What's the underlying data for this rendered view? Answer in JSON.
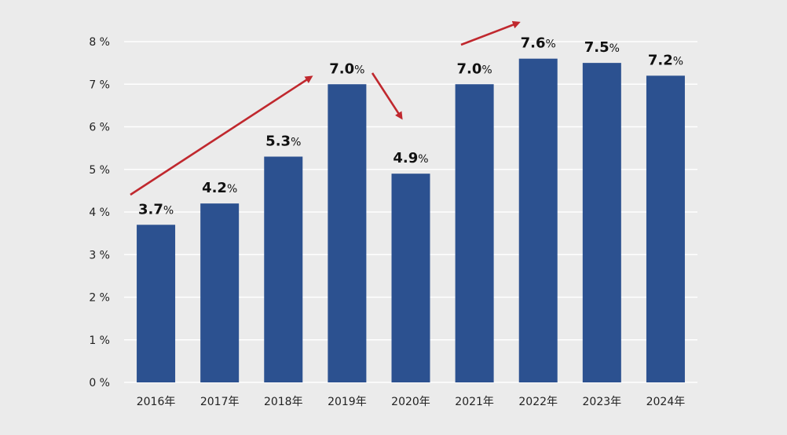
{
  "chart_data": {
    "type": "bar",
    "categories": [
      "2016年",
      "2017年",
      "2018年",
      "2019年",
      "2020年",
      "2021年",
      "2022年",
      "2023年",
      "2024年"
    ],
    "values": [
      3.7,
      4.2,
      5.3,
      7.0,
      4.9,
      7.0,
      7.6,
      7.5,
      7.2
    ],
    "value_labels": [
      "3.7",
      "4.2",
      "5.3",
      "7.0",
      "4.9",
      "7.0",
      "7.6",
      "7.5",
      "7.2"
    ],
    "value_suffix": "%",
    "y_tick_values": [
      0,
      1,
      2,
      3,
      4,
      5,
      6,
      7,
      8
    ],
    "y_tick_labels": [
      "0 %",
      "1 %",
      "2 %",
      "3 %",
      "4 %",
      "5 %",
      "6 %",
      "7 %",
      "8 %"
    ],
    "ylim": [
      0,
      8
    ],
    "grid": true,
    "legend": "none",
    "title": "",
    "xlabel": "",
    "ylabel": "",
    "annotations": [
      {
        "type": "trend-arrow",
        "from_category": "2016年",
        "to_category": "2019年",
        "direction": "up"
      },
      {
        "type": "trend-arrow",
        "from_category": "2019年",
        "to_category": "2020年",
        "direction": "down"
      },
      {
        "type": "trend-arrow",
        "from_category": "2021年",
        "to_category": "2022年",
        "direction": "up"
      }
    ]
  },
  "colors": {
    "background": "#ebebeb",
    "bar": "#2c5190",
    "grid": "#ffffff",
    "arrow": "#c0282e",
    "text": "#111111"
  }
}
